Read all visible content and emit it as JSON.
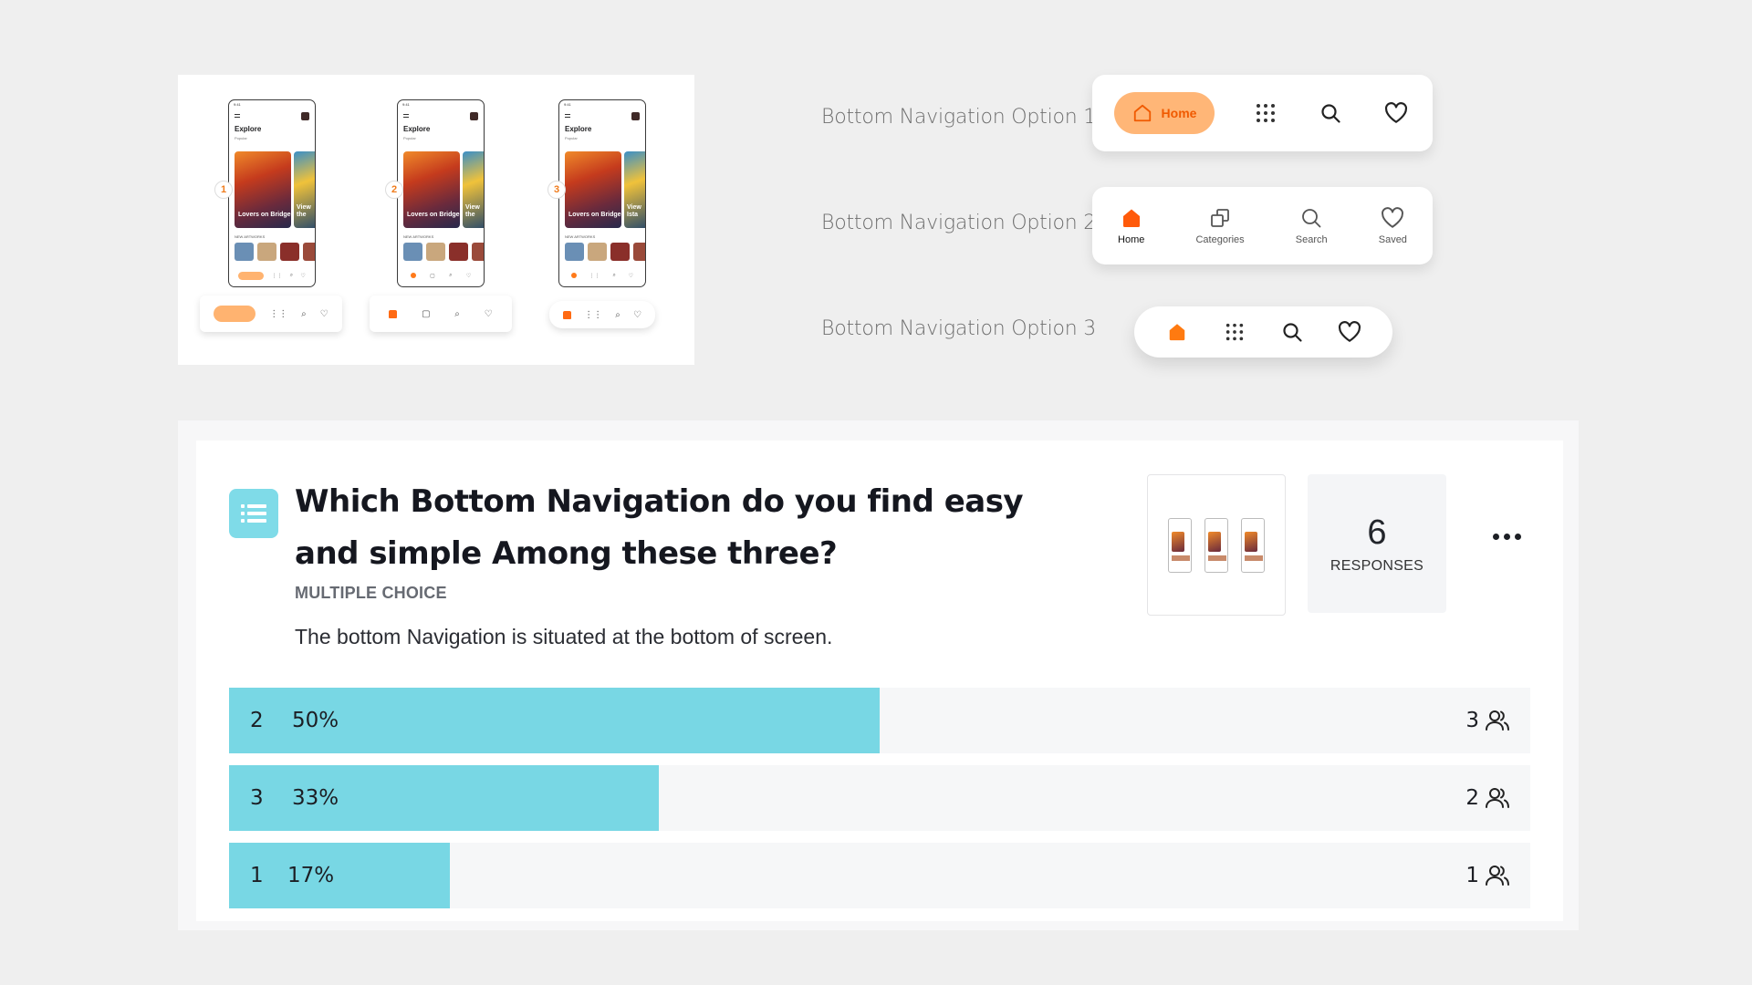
{
  "colors": {
    "accent_orange": "#ff6a13",
    "home_pill": "#ffb677",
    "bar_fill": "#78d7e4",
    "icon_bg": "#7fdbe8"
  },
  "preview": {
    "phones": [
      {
        "badge": "1",
        "explore": "Explore",
        "tab": "Popular",
        "card1": "Lovers on Bridge",
        "card2": "View the",
        "new_label": "NEW ARTWORKS"
      },
      {
        "badge": "2",
        "explore": "Explore",
        "tab": "Popular",
        "card1": "Lovers on Bridge",
        "card2": "View the",
        "new_label": "NEW ARTWORKS"
      },
      {
        "badge": "3",
        "explore": "Explore",
        "tab": "Popular",
        "card1": "Lovers on Bridge",
        "card2": "View Ista",
        "new_label": "NEW ARTWORKS"
      }
    ]
  },
  "options": [
    {
      "label": "Bottom Navigation Option 1"
    },
    {
      "label": "Bottom Navigation Option 2"
    },
    {
      "label": "Bottom Navigation Option 3"
    }
  ],
  "nav1": {
    "home_label": "Home",
    "icons": [
      "home-icon",
      "grid-icon",
      "search-icon",
      "heart-icon"
    ]
  },
  "nav2": {
    "items": [
      {
        "label": "Home",
        "icon": "home-filled-icon"
      },
      {
        "label": "Categories",
        "icon": "categories-icon"
      },
      {
        "label": "Search",
        "icon": "search-icon"
      },
      {
        "label": "Saved",
        "icon": "heart-icon"
      }
    ]
  },
  "nav3": {
    "icons": [
      "home-filled-icon",
      "grid-icon",
      "search-icon",
      "heart-icon"
    ]
  },
  "survey": {
    "title": "Which Bottom Navigation do you find easy and simple Among these three?",
    "type": "MULTIPLE CHOICE",
    "description": "The bottom Navigation is situated at the bottom of screen.",
    "responses_count": "6",
    "responses_label": "RESPONSES",
    "results": [
      {
        "option": "2",
        "percent": "50%",
        "fraction": 0.5,
        "count": "3"
      },
      {
        "option": "3",
        "percent": "33%",
        "fraction": 0.33,
        "count": "2"
      },
      {
        "option": "1",
        "percent": "17%",
        "fraction": 0.17,
        "count": "1"
      }
    ]
  }
}
